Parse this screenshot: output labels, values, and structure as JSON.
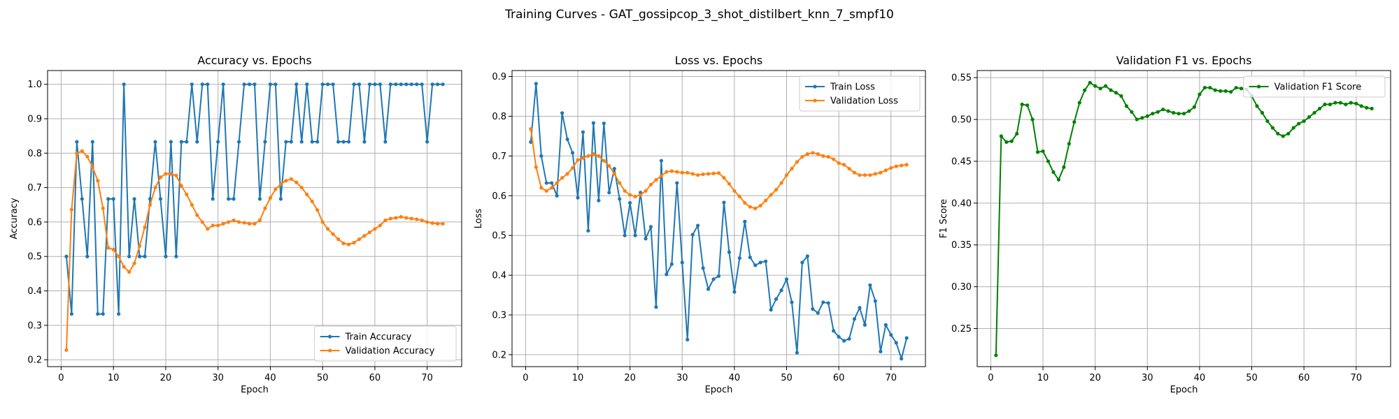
{
  "suptitle": "Training Curves - GAT_gossipcop_3_shot_distilbert_knn_7_smpf10",
  "colors": {
    "train": "#1f77b4",
    "val": "#ff7f0e",
    "f1": "#008000"
  },
  "chart_data": [
    {
      "type": "line",
      "title": "Accuracy vs. Epochs",
      "xlabel": "Epoch",
      "ylabel": "Accuracy",
      "xlim": [
        -2.6,
        76.6
      ],
      "ylim": [
        0.18,
        1.04
      ],
      "xticks": [
        0,
        10,
        20,
        30,
        40,
        50,
        60,
        70
      ],
      "yticks": [
        0.2,
        0.3,
        0.4,
        0.5,
        0.6,
        0.7,
        0.8,
        0.9,
        1.0
      ],
      "ytick_labels": [
        "0.2",
        "0.3",
        "0.4",
        "0.5",
        "0.6",
        "0.7",
        "0.8",
        "0.9",
        "1.0"
      ],
      "grid": true,
      "legend_position": "lower-right",
      "series": [
        {
          "name": "Train Accuracy",
          "color": "#1f77b4",
          "x": [
            1,
            2,
            3,
            4,
            5,
            6,
            7,
            8,
            9,
            10,
            11,
            12,
            13,
            14,
            15,
            16,
            17,
            18,
            19,
            20,
            21,
            22,
            23,
            24,
            25,
            26,
            27,
            28,
            29,
            30,
            31,
            32,
            33,
            34,
            35,
            36,
            37,
            38,
            39,
            40,
            41,
            42,
            43,
            44,
            45,
            46,
            47,
            48,
            49,
            50,
            51,
            52,
            53,
            54,
            55,
            56,
            57,
            58,
            59,
            60,
            61,
            62,
            63,
            64,
            65,
            66,
            67,
            68,
            69,
            70,
            71,
            72,
            73
          ],
          "values": [
            0.5,
            0.333,
            0.833,
            0.667,
            0.5,
            0.833,
            0.333,
            0.333,
            0.667,
            0.667,
            0.333,
            1.0,
            0.5,
            0.667,
            0.5,
            0.5,
            0.667,
            0.833,
            0.667,
            0.5,
            0.833,
            0.5,
            0.833,
            0.833,
            1.0,
            0.833,
            1.0,
            1.0,
            0.667,
            0.833,
            1.0,
            0.667,
            0.667,
            0.833,
            1.0,
            1.0,
            1.0,
            0.667,
            0.833,
            1.0,
            1.0,
            0.667,
            0.833,
            0.833,
            1.0,
            0.833,
            1.0,
            0.833,
            0.833,
            1.0,
            1.0,
            1.0,
            0.833,
            0.833,
            0.833,
            1.0,
            1.0,
            0.833,
            1.0,
            1.0,
            1.0,
            0.833,
            1.0,
            1.0,
            1.0,
            1.0,
            1.0,
            1.0,
            1.0,
            0.833,
            1.0,
            1.0,
            1.0
          ]
        },
        {
          "name": "Validation Accuracy",
          "color": "#ff7f0e",
          "x": [
            1,
            2,
            3,
            4,
            5,
            6,
            7,
            8,
            9,
            10,
            11,
            12,
            13,
            14,
            15,
            16,
            17,
            18,
            19,
            20,
            21,
            22,
            23,
            24,
            25,
            26,
            27,
            28,
            29,
            30,
            31,
            32,
            33,
            34,
            35,
            36,
            37,
            38,
            39,
            40,
            41,
            42,
            43,
            44,
            45,
            46,
            47,
            48,
            49,
            50,
            51,
            52,
            53,
            54,
            55,
            56,
            57,
            58,
            59,
            60,
            61,
            62,
            63,
            64,
            65,
            66,
            67,
            68,
            69,
            70,
            71,
            72,
            73
          ],
          "values": [
            0.228,
            0.636,
            0.8,
            0.806,
            0.79,
            0.76,
            0.72,
            0.64,
            0.525,
            0.52,
            0.5,
            0.47,
            0.455,
            0.48,
            0.53,
            0.585,
            0.65,
            0.7,
            0.73,
            0.74,
            0.74,
            0.735,
            0.705,
            0.68,
            0.65,
            0.62,
            0.6,
            0.58,
            0.59,
            0.59,
            0.595,
            0.6,
            0.605,
            0.6,
            0.598,
            0.595,
            0.595,
            0.605,
            0.64,
            0.67,
            0.695,
            0.71,
            0.72,
            0.725,
            0.715,
            0.7,
            0.68,
            0.66,
            0.635,
            0.6,
            0.58,
            0.565,
            0.55,
            0.538,
            0.535,
            0.54,
            0.55,
            0.56,
            0.57,
            0.58,
            0.59,
            0.605,
            0.61,
            0.612,
            0.615,
            0.612,
            0.61,
            0.608,
            0.605,
            0.6,
            0.597,
            0.595,
            0.595
          ]
        }
      ]
    },
    {
      "type": "line",
      "title": "Loss vs. Epochs",
      "xlabel": "Epoch",
      "ylabel": "Loss",
      "xlim": [
        -2.6,
        76.6
      ],
      "ylim": [
        0.17,
        0.915
      ],
      "xticks": [
        0,
        10,
        20,
        30,
        40,
        50,
        60,
        70
      ],
      "yticks": [
        0.2,
        0.3,
        0.4,
        0.5,
        0.6,
        0.7,
        0.8,
        0.9
      ],
      "ytick_labels": [
        "0.2",
        "0.3",
        "0.4",
        "0.5",
        "0.6",
        "0.7",
        "0.8",
        "0.9"
      ],
      "grid": true,
      "legend_position": "upper-right",
      "series": [
        {
          "name": "Train Loss",
          "color": "#1f77b4",
          "x": [
            1,
            2,
            3,
            4,
            5,
            6,
            7,
            8,
            9,
            10,
            11,
            12,
            13,
            14,
            15,
            16,
            17,
            18,
            19,
            20,
            21,
            22,
            23,
            24,
            25,
            26,
            27,
            28,
            29,
            30,
            31,
            32,
            33,
            34,
            35,
            36,
            37,
            38,
            39,
            40,
            41,
            42,
            43,
            44,
            45,
            46,
            47,
            48,
            49,
            50,
            51,
            52,
            53,
            54,
            55,
            56,
            57,
            58,
            59,
            60,
            61,
            62,
            63,
            64,
            65,
            66,
            67,
            68,
            69,
            70,
            71,
            72,
            73
          ],
          "values": [
            0.735,
            0.882,
            0.7,
            0.632,
            0.632,
            0.6,
            0.808,
            0.742,
            0.708,
            0.595,
            0.76,
            0.512,
            0.783,
            0.588,
            0.782,
            0.608,
            0.668,
            0.592,
            0.5,
            0.582,
            0.5,
            0.608,
            0.492,
            0.522,
            0.32,
            0.688,
            0.402,
            0.428,
            0.632,
            0.432,
            0.238,
            0.502,
            0.525,
            0.418,
            0.365,
            0.39,
            0.398,
            0.583,
            0.458,
            0.358,
            0.443,
            0.535,
            0.445,
            0.425,
            0.432,
            0.435,
            0.313,
            0.34,
            0.362,
            0.39,
            0.332,
            0.205,
            0.432,
            0.448,
            0.315,
            0.305,
            0.332,
            0.33,
            0.26,
            0.245,
            0.235,
            0.24,
            0.29,
            0.318,
            0.275,
            0.375,
            0.335,
            0.208,
            0.275,
            0.25,
            0.23,
            0.19,
            0.242
          ]
        },
        {
          "name": "Validation Loss",
          "color": "#ff7f0e",
          "x": [
            1,
            2,
            3,
            4,
            5,
            6,
            7,
            8,
            9,
            10,
            11,
            12,
            13,
            14,
            15,
            16,
            17,
            18,
            19,
            20,
            21,
            22,
            23,
            24,
            25,
            26,
            27,
            28,
            29,
            30,
            31,
            32,
            33,
            34,
            35,
            36,
            37,
            38,
            39,
            40,
            41,
            42,
            43,
            44,
            45,
            46,
            47,
            48,
            49,
            50,
            51,
            52,
            53,
            54,
            55,
            56,
            57,
            58,
            59,
            60,
            61,
            62,
            63,
            64,
            65,
            66,
            67,
            68,
            69,
            70,
            71,
            72,
            73
          ],
          "values": [
            0.768,
            0.672,
            0.62,
            0.612,
            0.62,
            0.632,
            0.645,
            0.655,
            0.67,
            0.69,
            0.695,
            0.7,
            0.705,
            0.7,
            0.688,
            0.675,
            0.655,
            0.632,
            0.612,
            0.602,
            0.598,
            0.602,
            0.612,
            0.628,
            0.64,
            0.65,
            0.66,
            0.662,
            0.66,
            0.658,
            0.658,
            0.655,
            0.652,
            0.654,
            0.655,
            0.656,
            0.657,
            0.645,
            0.63,
            0.612,
            0.598,
            0.582,
            0.572,
            0.568,
            0.575,
            0.588,
            0.602,
            0.615,
            0.632,
            0.652,
            0.668,
            0.685,
            0.698,
            0.705,
            0.708,
            0.705,
            0.7,
            0.698,
            0.692,
            0.682,
            0.678,
            0.668,
            0.658,
            0.652,
            0.652,
            0.652,
            0.655,
            0.658,
            0.664,
            0.67,
            0.674,
            0.676,
            0.678
          ]
        }
      ]
    },
    {
      "type": "line",
      "title": "Validation F1 vs. Epochs",
      "xlabel": "Epoch",
      "ylabel": "F1 Score",
      "xlim": [
        -2.6,
        76.6
      ],
      "ylim": [
        0.2045,
        0.5585
      ],
      "xticks": [
        0,
        10,
        20,
        30,
        40,
        50,
        60,
        70
      ],
      "yticks": [
        0.25,
        0.3,
        0.35,
        0.4,
        0.45,
        0.5,
        0.55
      ],
      "ytick_labels": [
        "0.25",
        "0.30",
        "0.35",
        "0.40",
        "0.45",
        "0.50",
        "0.55"
      ],
      "grid": true,
      "legend_position": "upper-right",
      "series": [
        {
          "name": "Validation F1 Score",
          "color": "#008000",
          "x": [
            1,
            2,
            3,
            4,
            5,
            6,
            7,
            8,
            9,
            10,
            11,
            12,
            13,
            14,
            15,
            16,
            17,
            18,
            19,
            20,
            21,
            22,
            23,
            24,
            25,
            26,
            27,
            28,
            29,
            30,
            31,
            32,
            33,
            34,
            35,
            36,
            37,
            38,
            39,
            40,
            41,
            42,
            43,
            44,
            45,
            46,
            47,
            48,
            49,
            50,
            51,
            52,
            53,
            54,
            55,
            56,
            57,
            58,
            59,
            60,
            61,
            62,
            63,
            64,
            65,
            66,
            67,
            68,
            69,
            70,
            71,
            72,
            73
          ],
          "values": [
            0.218,
            0.48,
            0.473,
            0.474,
            0.483,
            0.518,
            0.517,
            0.5,
            0.461,
            0.462,
            0.45,
            0.437,
            0.428,
            0.443,
            0.471,
            0.497,
            0.52,
            0.535,
            0.544,
            0.54,
            0.537,
            0.54,
            0.535,
            0.532,
            0.528,
            0.516,
            0.509,
            0.5,
            0.502,
            0.504,
            0.507,
            0.509,
            0.512,
            0.51,
            0.508,
            0.507,
            0.507,
            0.51,
            0.515,
            0.53,
            0.538,
            0.538,
            0.535,
            0.534,
            0.534,
            0.533,
            0.538,
            0.537,
            0.536,
            0.528,
            0.516,
            0.508,
            0.498,
            0.49,
            0.483,
            0.48,
            0.483,
            0.49,
            0.495,
            0.498,
            0.503,
            0.508,
            0.513,
            0.518,
            0.518,
            0.52,
            0.52,
            0.518,
            0.52,
            0.519,
            0.516,
            0.514,
            0.513
          ]
        }
      ]
    }
  ]
}
